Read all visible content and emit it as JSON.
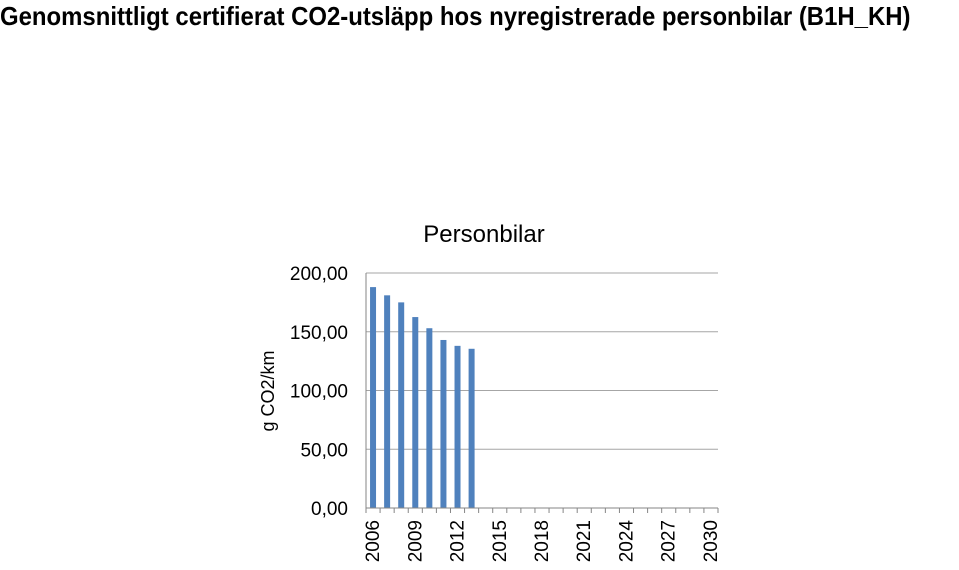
{
  "page": {
    "title": "Genomsnittligt certifierat CO2-utsläpp hos nyregistrerade personbilar (B1H_KH)"
  },
  "colors": {
    "bar": "#4f81bd",
    "grid": "#a6a6a6",
    "axis": "#868686"
  },
  "chart_data": {
    "type": "bar",
    "title": "Personbilar",
    "xlabel": "",
    "ylabel": "g CO2/km",
    "ylim": [
      0,
      200
    ],
    "yticks": [
      0,
      50,
      100,
      150,
      200
    ],
    "ytick_labels": [
      "0,00",
      "50,00",
      "100,00",
      "150,00",
      "200,00"
    ],
    "grid": true,
    "legend": "none",
    "categories": [
      "2006",
      "2007",
      "2008",
      "2009",
      "2010",
      "2011",
      "2012",
      "2013",
      "2014",
      "2015",
      "2016",
      "2017",
      "2018",
      "2019",
      "2020",
      "2021",
      "2022",
      "2023",
      "2024",
      "2025",
      "2026",
      "2027",
      "2028",
      "2029",
      "2030"
    ],
    "xtick_labels": [
      "2006",
      "",
      "",
      "2009",
      "",
      "",
      "2012",
      "",
      "",
      "2015",
      "",
      "",
      "2018",
      "",
      "",
      "2021",
      "",
      "",
      "2024",
      "",
      "",
      "2027",
      "",
      "",
      "2030"
    ],
    "values": [
      188,
      181,
      175,
      162.5,
      153,
      143,
      138,
      135.5,
      null,
      null,
      null,
      null,
      null,
      null,
      null,
      null,
      null,
      null,
      null,
      null,
      null,
      null,
      null,
      null,
      null
    ]
  }
}
